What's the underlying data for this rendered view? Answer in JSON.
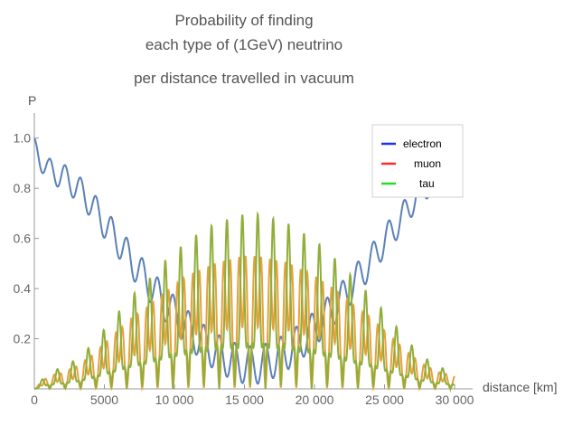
{
  "chart_data": {
    "type": "line",
    "title_lines": [
      "Probability of finding",
      "each type of (1GeV) neutrino",
      "per distance travelled in vacuum"
    ],
    "xlabel": "distance [km]",
    "ylabel": "P",
    "xlim": [
      0,
      30000
    ],
    "ylim": [
      0,
      1.1
    ],
    "x_ticks": [
      0,
      5000,
      10000,
      15000,
      20000,
      25000,
      30000
    ],
    "x_tick_labels": [
      "0",
      "5000",
      "10 000",
      "15 000",
      "20 000",
      "25 000",
      "30 000"
    ],
    "y_ticks": [
      0.2,
      0.4,
      0.6,
      0.8,
      1.0
    ],
    "y_tick_labels": [
      "0.2",
      "0.4",
      "0.6",
      "0.8",
      "1.0"
    ],
    "grid": false,
    "legend_position": "top-right",
    "series": [
      {
        "name": "electron",
        "legend_color": "#1f2fff",
        "line_color": "#5b81b8",
        "x": [
          0,
          1000,
          2000,
          3000,
          4000,
          5000,
          6000,
          7000,
          8000,
          9000,
          10000,
          11000,
          12000,
          13000,
          14000,
          15000,
          16000,
          17000,
          18000,
          19000,
          20000,
          21000,
          22000,
          23000,
          24000,
          25000,
          26000,
          27000,
          28000,
          29000,
          30000
        ],
        "y": [
          1.0,
          0.92,
          0.9,
          0.86,
          0.8,
          0.72,
          0.65,
          0.57,
          0.5,
          0.43,
          0.37,
          0.31,
          0.26,
          0.22,
          0.19,
          0.17,
          0.17,
          0.19,
          0.22,
          0.26,
          0.31,
          0.37,
          0.43,
          0.5,
          0.57,
          0.65,
          0.72,
          0.8,
          0.86,
          0.9,
          0.92
        ]
      },
      {
        "name": "muon",
        "legend_color": "#ff2b2b",
        "line_color": "#e8a03a",
        "x": [
          0,
          1000,
          2000,
          3000,
          4000,
          5000,
          6000,
          7000,
          8000,
          9000,
          10000,
          11000,
          12000,
          13000,
          14000,
          15000,
          16000,
          17000,
          18000,
          19000,
          20000,
          21000,
          22000,
          23000,
          24000,
          25000,
          26000,
          27000,
          28000,
          29000,
          30000
        ],
        "y": [
          0.0,
          0.04,
          0.05,
          0.07,
          0.1,
          0.14,
          0.18,
          0.22,
          0.25,
          0.29,
          0.32,
          0.35,
          0.37,
          0.39,
          0.4,
          0.41,
          0.41,
          0.4,
          0.39,
          0.37,
          0.35,
          0.32,
          0.29,
          0.25,
          0.22,
          0.18,
          0.14,
          0.1,
          0.07,
          0.05,
          0.04
        ]
      },
      {
        "name": "tau",
        "legend_color": "#2bd92b",
        "line_color": "#8fae3a",
        "x": [
          0,
          1000,
          2000,
          3000,
          4000,
          5000,
          6000,
          7000,
          8000,
          9000,
          10000,
          11000,
          12000,
          13000,
          14000,
          15000,
          16000,
          17000,
          18000,
          19000,
          20000,
          21000,
          22000,
          23000,
          24000,
          25000,
          26000,
          27000,
          28000,
          29000,
          30000
        ],
        "y": [
          0.0,
          0.04,
          0.05,
          0.07,
          0.1,
          0.14,
          0.18,
          0.22,
          0.25,
          0.29,
          0.32,
          0.35,
          0.37,
          0.39,
          0.4,
          0.41,
          0.41,
          0.4,
          0.39,
          0.37,
          0.35,
          0.32,
          0.29,
          0.25,
          0.22,
          0.18,
          0.14,
          0.1,
          0.07,
          0.05,
          0.04
        ]
      }
    ]
  }
}
